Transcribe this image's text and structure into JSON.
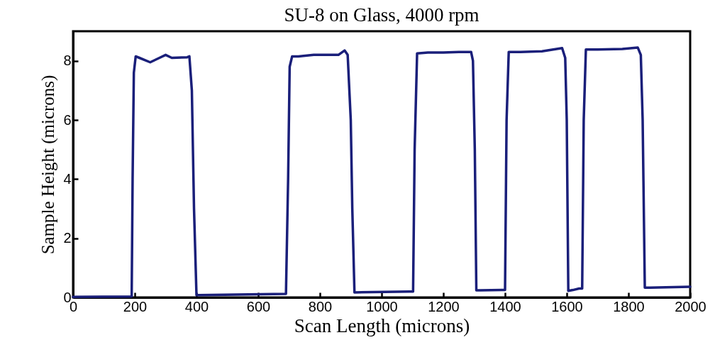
{
  "chart_data": {
    "type": "line",
    "title": "SU-8 on Glass, 4000 rpm",
    "xlabel": "Scan Length (microns)",
    "ylabel": "Sample Height (microns)",
    "x": [
      0,
      190,
      193,
      197,
      203,
      215,
      250,
      280,
      300,
      320,
      370,
      377,
      385,
      392,
      400,
      410,
      690,
      697,
      702,
      710,
      730,
      780,
      860,
      880,
      890,
      900,
      905,
      912,
      1090,
      1102,
      1107,
      1115,
      1150,
      1200,
      1250,
      1290,
      1296,
      1302,
      1307,
      1320,
      1390,
      1400,
      1405,
      1412,
      1450,
      1520,
      1585,
      1595,
      1600,
      1605,
      1620,
      1640,
      1650,
      1655,
      1662,
      1700,
      1780,
      1830,
      1840,
      1846,
      1853,
      1870,
      2000
    ],
    "series": [
      {
        "color": "#1a1f7a",
        "values": [
          0.02,
          0.03,
          4,
          7.6,
          8.15,
          8.1,
          7.95,
          8.1,
          8.2,
          8.1,
          8.12,
          8.15,
          7,
          3,
          0.08,
          0.08,
          0.12,
          4,
          7.8,
          8.15,
          8.15,
          8.2,
          8.2,
          8.35,
          8.2,
          6,
          3,
          0.17,
          0.2,
          0.2,
          5,
          8.25,
          8.28,
          8.28,
          8.3,
          8.3,
          8,
          5,
          0.24,
          0.24,
          0.25,
          0.25,
          6,
          8.3,
          8.3,
          8.32,
          8.43,
          8.1,
          6,
          0.22,
          0.25,
          0.3,
          0.3,
          6,
          8.38,
          8.38,
          8.4,
          8.45,
          8.2,
          6,
          0.33,
          0.33,
          0.36
        ]
      }
    ],
    "xlim": [
      0,
      2000
    ],
    "xticks": [
      0,
      200,
      400,
      600,
      800,
      1000,
      1200,
      1400,
      1600,
      1800,
      2000
    ],
    "ylim": [
      0,
      9
    ],
    "yticks": [
      0,
      2,
      4,
      6,
      8
    ],
    "grid": false,
    "marker": "none",
    "line_style": "solid"
  }
}
